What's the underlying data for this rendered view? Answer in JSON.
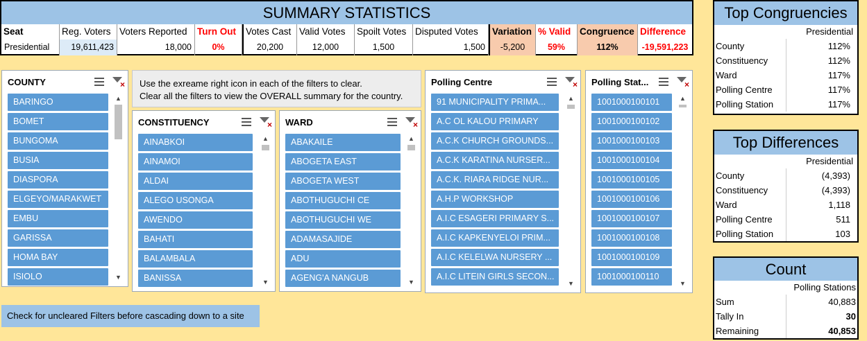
{
  "summary": {
    "title": "SUMMARY STATISTICS",
    "headers": {
      "seat": "Seat",
      "reg_voters": "Reg. Voters",
      "voters_reported": "Voters Reported",
      "turn_out": "Turn Out",
      "votes_cast": "Votes Cast",
      "valid_votes": "Valid Votes",
      "spoilt_votes": "Spoilt Votes",
      "disputed_votes": "Disputed Votes",
      "variation": "Variation",
      "pct_valid": "% Valid",
      "congruence": "Congruence",
      "difference": "Difference"
    },
    "row": {
      "seat": "Presidential",
      "reg_voters": "19,611,423",
      "voters_reported": "18,000",
      "turn_out": "0%",
      "votes_cast": "20,200",
      "valid_votes": "12,000",
      "spoilt_votes": "1,500",
      "disputed_votes": "1,500",
      "variation": "-5,200",
      "pct_valid": "59%",
      "congruence": "112%",
      "difference": "-19,591,223"
    }
  },
  "top_congruencies": {
    "title": "Top Congruencies",
    "sub": "Presidential",
    "rows": [
      {
        "k": "County",
        "v": "112%"
      },
      {
        "k": "Constituency",
        "v": "112%"
      },
      {
        "k": "Ward",
        "v": "117%"
      },
      {
        "k": "Polling Centre",
        "v": "117%"
      },
      {
        "k": "Polling Station",
        "v": "117%"
      }
    ]
  },
  "top_differences": {
    "title": "Top Differences",
    "sub": "Presidential",
    "rows": [
      {
        "k": "County",
        "v": "(4,393)"
      },
      {
        "k": "Constituency",
        "v": "(4,393)"
      },
      {
        "k": "Ward",
        "v": "1,118"
      },
      {
        "k": "Polling Centre",
        "v": "511"
      },
      {
        "k": "Polling Station",
        "v": "103"
      }
    ]
  },
  "count": {
    "title": "Count",
    "sub": "Polling Stations",
    "rows": [
      {
        "k": "Sum",
        "v": "40,883"
      },
      {
        "k": "Tally In",
        "v": "30"
      },
      {
        "k": "Remaining",
        "v": "40,853"
      }
    ]
  },
  "slicers": {
    "county": {
      "title": "COUNTY",
      "items": [
        "BARINGO",
        "BOMET",
        "BUNGOMA",
        "BUSIA",
        "DIASPORA",
        "ELGEYO/MARAKWET",
        "EMBU",
        "GARISSA",
        "HOMA BAY",
        "ISIOLO"
      ]
    },
    "constituency": {
      "title": "CONSTITUENCY",
      "items": [
        "AINABKOI",
        "AINAMOI",
        "ALDAI",
        "ALEGO USONGA",
        "AWENDO",
        "BAHATI",
        "BALAMBALA",
        "BANISSA"
      ]
    },
    "ward": {
      "title": "WARD",
      "items": [
        "ABAKAILE",
        "ABOGETA EAST",
        "ABOGETA WEST",
        "ABOTHUGUCHI CE",
        "ABOTHUGUCHI WE",
        "ADAMASAJIDE",
        "ADU",
        "AGENG'A NANGUB"
      ]
    },
    "polling_centre": {
      "title": "Polling Centre",
      "items": [
        "91 MUNICIPALITY PRIMA...",
        "A.C OL KALOU PRIMARY",
        "A.C.K CHURCH GROUNDS...",
        "A.C.K KARATINA NURSER...",
        "A.C.K. RIARA RIDGE NUR...",
        "A.H.P WORKSHOP",
        "A.I.C ESAGERI PRIMARY S...",
        "A.I.C KAPKENYELOI PRIM...",
        "A.I.C KELELWA NURSERY ...",
        "A.I.C LITEIN GIRLS SECON..."
      ]
    },
    "polling_station": {
      "title": "Polling Stat...",
      "items": [
        "1001000100101",
        "1001000100102",
        "1001000100103",
        "1001000100104",
        "1001000100105",
        "1001000100106",
        "1001000100107",
        "1001000100108",
        "1001000100109",
        "1001000100110"
      ]
    }
  },
  "notes": {
    "line1": "Use the exreame right icon in each of the filters to clear.",
    "line2": "Clear all the filters to view the OVERALL summary for the country.",
    "bottom": "Check for uncleared Filters before cascading down to a site"
  },
  "icons": {
    "multiselect": "multi-select-icon",
    "clear": "clear-filter-icon",
    "up": "scroll-up-arrow-icon",
    "down": "scroll-down-arrow-icon"
  }
}
